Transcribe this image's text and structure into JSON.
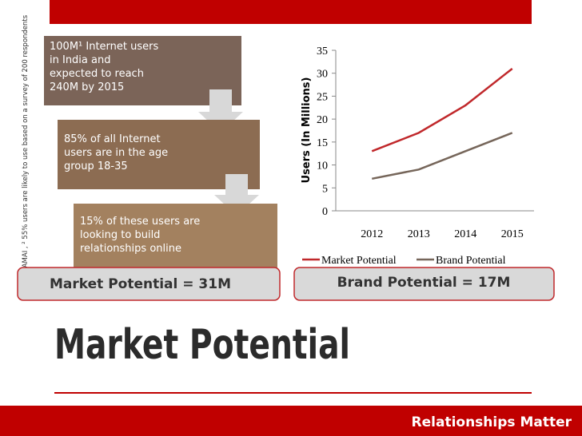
{
  "footnote": "¹IAMAI , ² 55%  users are likely to use based on a survey of 200 respondents",
  "steps": [
    "100M¹ Internet users in India and expected to reach 240M by 2015",
    "85% of all Internet users are in the age group 18-35",
    "15% of these users are looking to build relationships online"
  ],
  "summary": [
    "Market Potential = 31M",
    "Brand Potential = 17M"
  ],
  "title": "Market Potential",
  "footer": "Relationships Matter",
  "chart_data": {
    "type": "line",
    "y_label": "Users (In Millions)",
    "categories": [
      "2012",
      "2013",
      "2014",
      "2015"
    ],
    "series": [
      {
        "name": "Market Potential",
        "color": "#c0282b",
        "values": [
          13,
          17,
          23,
          31
        ]
      },
      {
        "name": "Brand Potential",
        "color": "#76665a",
        "values": [
          7,
          9,
          13,
          17
        ]
      }
    ],
    "ylim": [
      0,
      35
    ],
    "yticks": [
      0,
      5,
      10,
      15,
      20,
      25,
      30,
      35
    ],
    "legend": "bottom"
  }
}
